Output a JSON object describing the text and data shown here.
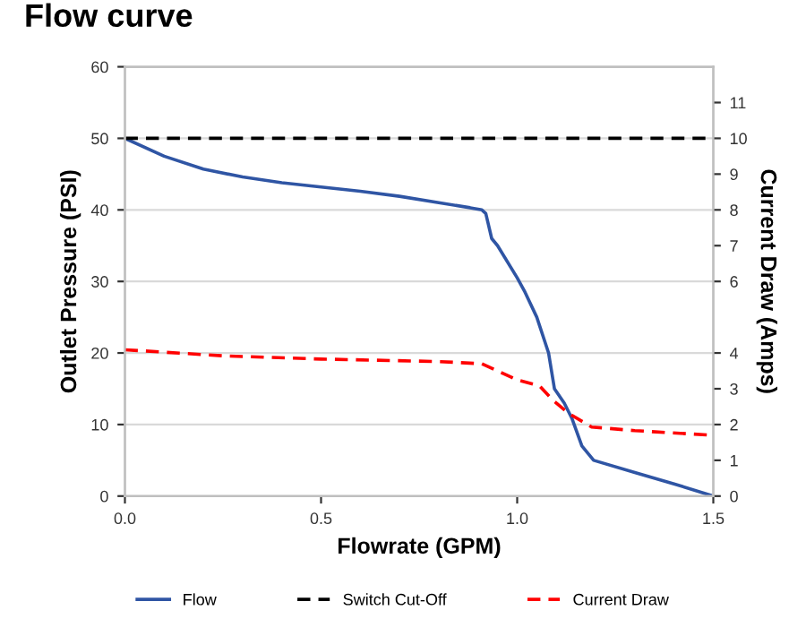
{
  "chart_data": {
    "type": "line",
    "title": "Flow curve",
    "xlabel": "Flowrate (GPM)",
    "ylabel": "Outlet Pressure (PSI)",
    "y2label": "Current Draw (Amps)",
    "xlim": [
      0,
      1.5
    ],
    "xticks": [
      {
        "value": 0,
        "label": "0.0"
      },
      0.5,
      {
        "value": 1,
        "label": "1.0"
      },
      1.5
    ],
    "ylim": [
      0,
      60
    ],
    "yticks": [
      0,
      10,
      20,
      30,
      40,
      50,
      60
    ],
    "y2lim": [
      0,
      12
    ],
    "y2ticks": [
      0,
      1,
      2,
      3,
      4,
      6,
      7,
      8,
      9,
      10,
      11
    ],
    "grid": "y",
    "legend": "bottom",
    "series": [
      {
        "name": "Flow",
        "color": "#2f55a4",
        "line_style": "solid",
        "x": [
          0,
          0.1,
          0.2,
          0.3,
          0.4,
          0.5,
          0.6,
          0.7,
          0.8,
          0.88,
          0.91,
          0.92,
          0.935,
          0.95,
          1.0,
          1.02,
          1.05,
          1.08,
          1.095,
          1.12,
          1.14,
          1.165,
          1.195,
          1.3,
          1.4,
          1.5
        ],
        "values": [
          50,
          47.5,
          45.7,
          44.6,
          43.8,
          43.2,
          42.6,
          41.9,
          41.0,
          40.3,
          40.0,
          39.5,
          36,
          35,
          30.5,
          28.5,
          25,
          20,
          15,
          13,
          10.8,
          7,
          5,
          3.3,
          1.7,
          0
        ]
      },
      {
        "name": "Switch Cut-Off",
        "color": "#000000",
        "line_style": "dashed",
        "x": [
          0,
          1.5
        ],
        "values": [
          50,
          50
        ]
      },
      {
        "name": "Current Draw",
        "color": "#ff0000",
        "line_style": "dashed",
        "axis": "y2",
        "x": [
          0,
          0.25,
          0.5,
          0.8,
          0.91,
          0.95,
          1.0,
          1.057,
          1.09,
          1.13,
          1.19,
          1.3,
          1.5
        ],
        "values": [
          4.09,
          3.92,
          3.83,
          3.76,
          3.7,
          3.5,
          3.25,
          3.08,
          2.69,
          2.32,
          1.93,
          1.83,
          1.7
        ]
      }
    ]
  }
}
